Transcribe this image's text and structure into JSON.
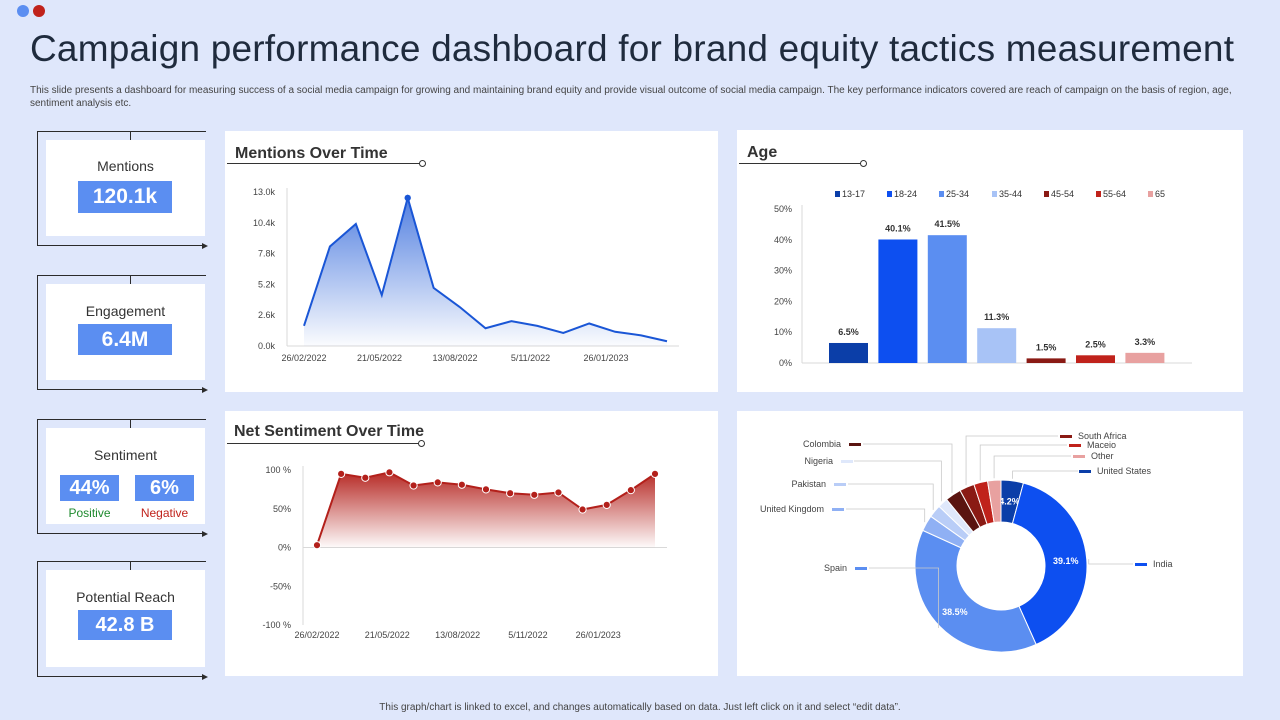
{
  "header": {
    "title": "Campaign performance dashboard for brand equity tactics measurement",
    "subtitle": "This slide presents a dashboard for measuring success of a social media campaign for growing and maintaining brand equity and provide visual outcome of social media campaign. The key performance indicators covered are reach of campaign on the basis of region, age, sentiment analysis etc."
  },
  "kpis": {
    "mentions": {
      "label": "Mentions",
      "value": "120.1k"
    },
    "engagement": {
      "label": "Engagement",
      "value": "6.4M"
    },
    "sentiment": {
      "label": "Sentiment",
      "positive_value": "44%",
      "positive_label": "Positive",
      "negative_value": "6%",
      "negative_label": "Negative"
    },
    "reach": {
      "label": "Potential Reach",
      "value": "42.8 B"
    }
  },
  "colors": {
    "accent": "#5b8ef1",
    "mentions_line": "#1a56d6",
    "sentiment_line": "#b3201b",
    "positive": "#1e8a2e",
    "negative": "#c0221b"
  },
  "footer": "This graph/chart is linked to excel, and changes automatically based on data. Just left click on it and select “edit data”.",
  "chart_data": [
    {
      "id": "mentions",
      "type": "area",
      "title": "Mentions Over Time",
      "y_ticks": [
        "0.0k",
        "2.6k",
        "5.2k",
        "7.8k",
        "10.4k",
        "13.0k"
      ],
      "ylim": [
        0,
        13000
      ],
      "x_tick_labels": [
        "26/02/2022",
        "21/05/2022",
        "13/08/2022",
        "5/11/2022",
        "26/01/2023"
      ],
      "values": [
        1700,
        8400,
        10300,
        4300,
        12500,
        4900,
        3300,
        1500,
        2100,
        1700,
        1100,
        1900,
        1200,
        900,
        400
      ],
      "highlight_index": 4
    },
    {
      "id": "sentiment",
      "type": "area",
      "title": "Net Sentiment Over Time",
      "y_ticks": [
        "100 %",
        "50%",
        "0%",
        "-50%",
        "-100 %"
      ],
      "ylim": [
        -100,
        100
      ],
      "x_tick_labels": [
        "26/02/2022",
        "21/05/2022",
        "13/08/2022",
        "5/11/2022",
        "26/01/2023"
      ],
      "values": [
        3,
        95,
        90,
        97,
        80,
        84,
        81,
        75,
        70,
        68,
        71,
        49,
        55,
        74,
        95
      ]
    },
    {
      "id": "age",
      "type": "bar",
      "title": "Age",
      "categories": [
        "13-17",
        "18-24",
        "25-34",
        "35-44",
        "45-54",
        "55-64",
        "65"
      ],
      "values": [
        6.5,
        40.1,
        41.5,
        11.3,
        1.5,
        2.5,
        3.3
      ],
      "value_labels": [
        "6.5%",
        "40.1%",
        "41.5%",
        "11.3%",
        "1.5%",
        "2.5%",
        "3.3%"
      ],
      "colors": [
        "#0b3ea8",
        "#0d4ff0",
        "#5b8ef1",
        "#a8c3f6",
        "#8a1a14",
        "#c0221b",
        "#e8a1a0"
      ],
      "y_ticks": [
        "0%",
        "10%",
        "20%",
        "30%",
        "40%",
        "50%"
      ],
      "ylim": [
        0,
        50
      ],
      "legend": "top"
    },
    {
      "id": "region",
      "type": "pie",
      "slices": [
        {
          "name": "United States",
          "value": 4.2,
          "label": "4.2%",
          "color": "#0b3ea8"
        },
        {
          "name": "India",
          "value": 39.1,
          "label": "39.1%",
          "color": "#0d4ff0"
        },
        {
          "name": "Spain",
          "value": 38.5,
          "label": "38.5%",
          "color": "#5b8ef1"
        },
        {
          "name": "United Kingdom",
          "value": 3.0,
          "label": "",
          "color": "#8fb0f4"
        },
        {
          "name": "Pakistan",
          "value": 2.4,
          "label": "",
          "color": "#b9cdf7"
        },
        {
          "name": "Nigeria",
          "value": 1.9,
          "label": "",
          "color": "#dfe8fb"
        },
        {
          "name": "Colombia",
          "value": 3.0,
          "label": "",
          "color": "#5a1410"
        },
        {
          "name": "South Africa",
          "value": 2.8,
          "label": "",
          "color": "#8a1a14"
        },
        {
          "name": "Maceio",
          "value": 2.6,
          "label": "",
          "color": "#c0221b"
        },
        {
          "name": "Other",
          "value": 2.5,
          "label": "",
          "color": "#e8a1a0"
        }
      ]
    }
  ]
}
